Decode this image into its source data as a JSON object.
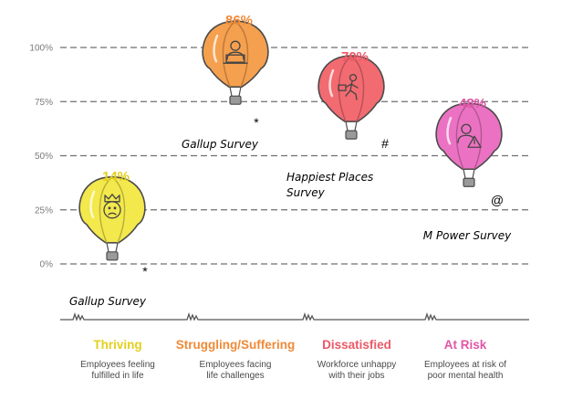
{
  "chart_data": {
    "type": "bar",
    "ylim": [
      0,
      100
    ],
    "ytick_labels": [
      "0%",
      "25%",
      "50%",
      "75%",
      "100%"
    ],
    "yticks": [
      0,
      25,
      50,
      75,
      100
    ],
    "grid": true,
    "categories": [
      {
        "name": "Thriving",
        "value": 14,
        "value_label": "14%",
        "color": "#e2cf1c",
        "fill": "#f3e84c",
        "description": [
          "Employees feeling",
          "fulfilled in life"
        ],
        "source": [
          "Gallup Survey"
        ],
        "marker": "*",
        "icon": "crown-face-icon"
      },
      {
        "name": "Struggling/Suffering",
        "value": 86,
        "value_label": "86%",
        "color": "#ef8a38",
        "fill": "#f5a04e",
        "description": [
          "Employees facing",
          "life challenges"
        ],
        "source": [
          "Gallup Survey"
        ],
        "marker": "*",
        "icon": "laptop-worker-icon"
      },
      {
        "name": "Dissatisfied",
        "value": 70,
        "value_label": "70%",
        "color": "#ec5966",
        "fill": "#f26b71",
        "description": [
          "Workforce unhappy",
          "with their jobs"
        ],
        "source": [
          "Happiest Places",
          "Survey"
        ],
        "marker": "#",
        "icon": "running-worker-icon"
      },
      {
        "name": "At Risk",
        "value": 48,
        "value_label": "48%",
        "color": "#e055a8",
        "fill": "#eb72c2",
        "description": [
          "Employees at risk of",
          "poor mental health"
        ],
        "source": [
          "M Power Survey"
        ],
        "marker": "@",
        "icon": "warning-person-icon"
      }
    ]
  }
}
